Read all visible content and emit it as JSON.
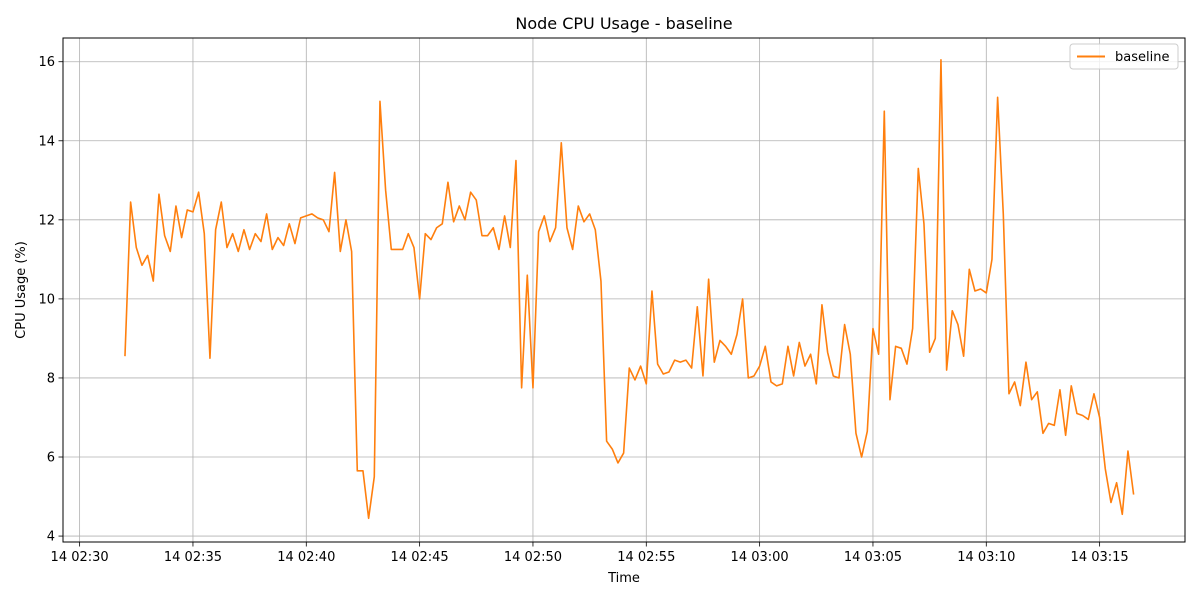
{
  "chart_data": {
    "type": "line",
    "title": "Node CPU Usage - baseline",
    "xlabel": "Time",
    "ylabel": "CPU Usage (%)",
    "grid": true,
    "legend_position": "top-right",
    "x_ticks": [
      "14 02:30",
      "14 02:35",
      "14 02:40",
      "14 02:45",
      "14 02:50",
      "14 02:55",
      "14 03:00",
      "14 03:05",
      "14 03:10",
      "14 03:15"
    ],
    "y_ticks": [
      4,
      6,
      8,
      10,
      12,
      14,
      16
    ],
    "xlim": [
      "14 02:29:16",
      "14 03:18:46"
    ],
    "ylim": [
      3.85,
      16.6
    ],
    "series": [
      {
        "name": "baseline",
        "color": "#ff7f0e",
        "x": [
          "14 02:32:00",
          "14 02:32:15",
          "14 02:32:30",
          "14 02:32:45",
          "14 02:33:00",
          "14 02:33:15",
          "14 02:33:30",
          "14 02:33:45",
          "14 02:34:00",
          "14 02:34:15",
          "14 02:34:30",
          "14 02:34:45",
          "14 02:35:00",
          "14 02:35:15",
          "14 02:35:30",
          "14 02:35:45",
          "14 02:36:00",
          "14 02:36:15",
          "14 02:36:30",
          "14 02:36:45",
          "14 02:37:00",
          "14 02:37:15",
          "14 02:37:30",
          "14 02:37:45",
          "14 02:38:00",
          "14 02:38:15",
          "14 02:38:30",
          "14 02:38:45",
          "14 02:39:00",
          "14 02:39:15",
          "14 02:39:30",
          "14 02:39:45",
          "14 02:40:00",
          "14 02:40:15",
          "14 02:40:30",
          "14 02:40:45",
          "14 02:41:00",
          "14 02:41:15",
          "14 02:41:30",
          "14 02:41:45",
          "14 02:42:00",
          "14 02:42:15",
          "14 02:42:30",
          "14 02:42:45",
          "14 02:43:00",
          "14 02:43:15",
          "14 02:43:30",
          "14 02:43:45",
          "14 02:44:00",
          "14 02:44:15",
          "14 02:44:30",
          "14 02:44:45",
          "14 02:45:00",
          "14 02:45:15",
          "14 02:45:30",
          "14 02:45:45",
          "14 02:46:00",
          "14 02:46:15",
          "14 02:46:30",
          "14 02:46:45",
          "14 02:47:00",
          "14 02:47:15",
          "14 02:47:30",
          "14 02:47:45",
          "14 02:48:00",
          "14 02:48:15",
          "14 02:48:30",
          "14 02:48:45",
          "14 02:49:00",
          "14 02:49:15",
          "14 02:49:30",
          "14 02:49:45",
          "14 02:50:00",
          "14 02:50:15",
          "14 02:50:30",
          "14 02:50:45",
          "14 02:51:00",
          "14 02:51:15",
          "14 02:51:30",
          "14 02:51:45",
          "14 02:52:00",
          "14 02:52:15",
          "14 02:52:30",
          "14 02:52:45",
          "14 02:53:00",
          "14 02:53:15",
          "14 02:53:30",
          "14 02:53:45",
          "14 02:54:00",
          "14 02:54:15",
          "14 02:54:30",
          "14 02:54:45",
          "14 02:55:00",
          "14 02:55:15",
          "14 02:55:30",
          "14 02:55:45",
          "14 02:56:00",
          "14 02:56:15",
          "14 02:56:30",
          "14 02:56:45",
          "14 02:57:00",
          "14 02:57:15",
          "14 02:57:30",
          "14 02:57:45",
          "14 02:58:00",
          "14 02:58:15",
          "14 02:58:30",
          "14 02:58:45",
          "14 02:59:00",
          "14 02:59:15",
          "14 02:59:30",
          "14 02:59:45",
          "14 03:00:00",
          "14 03:00:15",
          "14 03:00:30",
          "14 03:00:45",
          "14 03:01:00",
          "14 03:01:15",
          "14 03:01:30",
          "14 03:01:45",
          "14 03:02:00",
          "14 03:02:15",
          "14 03:02:30",
          "14 03:02:45",
          "14 03:03:00",
          "14 03:03:15",
          "14 03:03:30",
          "14 03:03:45",
          "14 03:04:00",
          "14 03:04:15",
          "14 03:04:30",
          "14 03:04:45",
          "14 03:05:00",
          "14 03:05:15",
          "14 03:05:30",
          "14 03:05:45",
          "14 03:06:00",
          "14 03:06:15",
          "14 03:06:30",
          "14 03:06:45",
          "14 03:07:00",
          "14 03:07:15",
          "14 03:07:30",
          "14 03:07:45",
          "14 03:08:00",
          "14 03:08:15",
          "14 03:08:30",
          "14 03:08:45",
          "14 03:09:00",
          "14 03:09:15",
          "14 03:09:30",
          "14 03:09:45",
          "14 03:10:00",
          "14 03:10:15",
          "14 03:10:30",
          "14 03:10:45",
          "14 03:11:00",
          "14 03:11:15",
          "14 03:11:30",
          "14 03:11:45",
          "14 03:12:00",
          "14 03:12:15",
          "14 03:12:30",
          "14 03:12:45",
          "14 03:13:00",
          "14 03:13:15",
          "14 03:13:30",
          "14 03:13:45",
          "14 03:14:00",
          "14 03:14:15",
          "14 03:14:30",
          "14 03:14:45",
          "14 03:15:00",
          "14 03:15:15",
          "14 03:15:30",
          "14 03:15:45",
          "14 03:16:00",
          "14 03:16:15",
          "14 03:16:30"
        ],
        "y": [
          8.55,
          12.45,
          11.3,
          10.85,
          11.1,
          10.45,
          12.65,
          11.6,
          11.2,
          12.35,
          11.55,
          12.25,
          12.2,
          12.7,
          11.65,
          8.5,
          11.75,
          12.45,
          11.3,
          11.65,
          11.2,
          11.75,
          11.25,
          11.65,
          11.45,
          12.15,
          11.25,
          11.55,
          11.35,
          11.9,
          11.4,
          12.05,
          12.1,
          12.15,
          12.05,
          12.0,
          11.7,
          13.2,
          11.2,
          12.0,
          11.2,
          5.65,
          5.65,
          4.45,
          5.5,
          15.0,
          12.75,
          11.25,
          11.25,
          11.25,
          11.65,
          11.3,
          10.0,
          11.65,
          11.5,
          11.8,
          11.9,
          12.95,
          11.95,
          12.35,
          12.0,
          12.7,
          12.5,
          11.6,
          11.6,
          11.8,
          11.25,
          12.1,
          11.3,
          13.5,
          7.75,
          10.6,
          7.75,
          11.7,
          12.1,
          11.45,
          11.8,
          13.95,
          11.8,
          11.25,
          12.35,
          11.95,
          12.15,
          11.75,
          10.45,
          6.4,
          6.2,
          5.85,
          6.1,
          8.25,
          7.95,
          8.3,
          7.85,
          10.2,
          8.35,
          8.1,
          8.15,
          8.45,
          8.4,
          8.45,
          8.25,
          9.8,
          8.05,
          10.5,
          8.4,
          8.95,
          8.8,
          8.6,
          9.1,
          10.0,
          8.0,
          8.05,
          8.3,
          8.8,
          7.9,
          7.8,
          7.85,
          8.8,
          8.05,
          8.9,
          8.3,
          8.6,
          7.85,
          9.85,
          8.65,
          8.05,
          8.0,
          9.35,
          8.6,
          6.6,
          6.0,
          6.65,
          9.25,
          8.6,
          14.75,
          7.45,
          8.8,
          8.75,
          8.35,
          9.25,
          13.3,
          11.9,
          8.65,
          9.0,
          16.05,
          8.2,
          9.7,
          9.35,
          8.55,
          10.75,
          10.2,
          10.25,
          10.15,
          11.0,
          15.1,
          12.15,
          7.6,
          7.9,
          7.3,
          8.4,
          7.45,
          7.65,
          6.6,
          6.85,
          6.8,
          7.7,
          6.55,
          7.8,
          7.1,
          7.05,
          6.95,
          7.6,
          7.0,
          5.7,
          4.85,
          5.35,
          4.55,
          6.15,
          5.05
        ]
      }
    ]
  }
}
